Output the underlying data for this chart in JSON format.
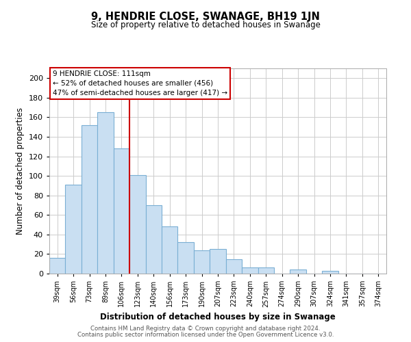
{
  "title": "9, HENDRIE CLOSE, SWANAGE, BH19 1JN",
  "subtitle": "Size of property relative to detached houses in Swanage",
  "xlabel": "Distribution of detached houses by size in Swanage",
  "ylabel": "Number of detached properties",
  "bar_labels": [
    "39sqm",
    "56sqm",
    "73sqm",
    "89sqm",
    "106sqm",
    "123sqm",
    "140sqm",
    "156sqm",
    "173sqm",
    "190sqm",
    "207sqm",
    "223sqm",
    "240sqm",
    "257sqm",
    "274sqm",
    "290sqm",
    "307sqm",
    "324sqm",
    "341sqm",
    "357sqm",
    "374sqm"
  ],
  "bar_values": [
    16,
    91,
    152,
    165,
    128,
    101,
    70,
    48,
    32,
    24,
    25,
    15,
    6,
    6,
    0,
    4,
    0,
    3,
    0,
    0,
    0
  ],
  "bar_color": "#c9dff2",
  "bar_edge_color": "#7aafd4",
  "vline_x": 4.5,
  "vline_color": "#cc0000",
  "annotation_title": "9 HENDRIE CLOSE: 111sqm",
  "annotation_line1": "← 52% of detached houses are smaller (456)",
  "annotation_line2": "47% of semi-detached houses are larger (417) →",
  "box_color": "#ffffff",
  "box_edge_color": "#cc0000",
  "ylim": [
    0,
    210
  ],
  "yticks": [
    0,
    20,
    40,
    60,
    80,
    100,
    120,
    140,
    160,
    180,
    200
  ],
  "footer1": "Contains HM Land Registry data © Crown copyright and database right 2024.",
  "footer2": "Contains public sector information licensed under the Open Government Licence v3.0."
}
